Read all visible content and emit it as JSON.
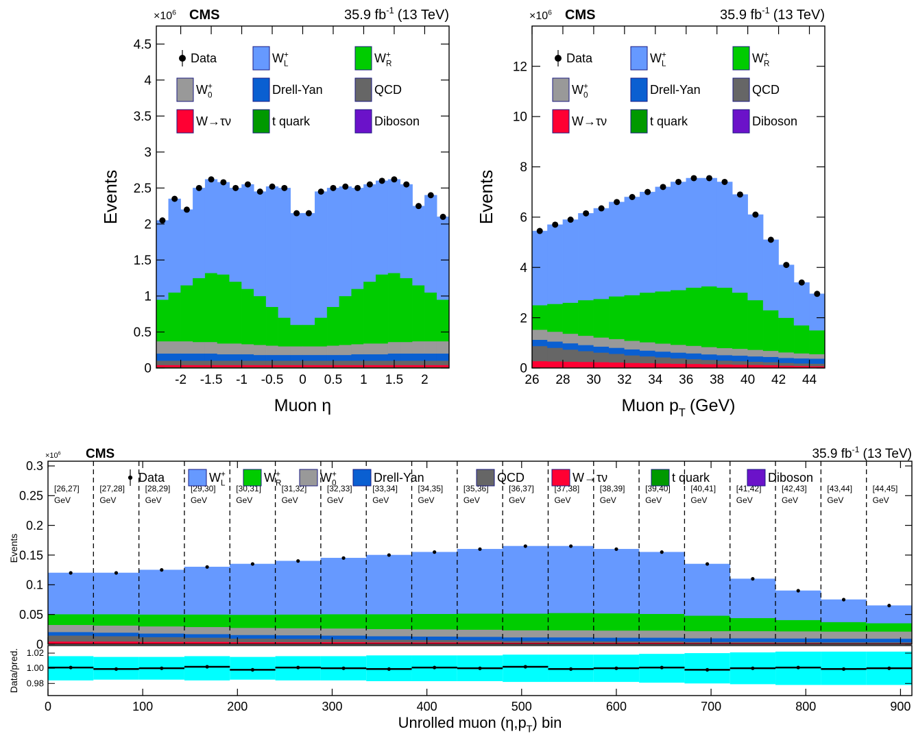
{
  "chart_data": [
    {
      "type": "stacked_histogram",
      "exponent_base": "×10",
      "exponent": "6",
      "experiment": "CMS",
      "lumi": "35.9 fb",
      "lumi_sup": "-1",
      "lumi_energy": "(13 TeV)",
      "ylabel": "Events",
      "xlabel": "Muon η",
      "bins": [
        -2.4,
        -2.2,
        -2,
        -1.8,
        -1.6,
        -1.4,
        -1.2,
        -1,
        -0.8,
        -0.6,
        -0.4,
        -0.2,
        0,
        0.2,
        0.4,
        0.6,
        0.8,
        1,
        1.2,
        1.4,
        1.6,
        1.8,
        2,
        2.2,
        2.4
      ],
      "xlim": [
        -2.4,
        2.4
      ],
      "xticks": [
        -2,
        -1.5,
        -1,
        -0.5,
        0,
        0.5,
        1,
        1.5,
        2
      ],
      "ylim": [
        0,
        4.75
      ],
      "yticks": [
        0,
        0.5,
        1,
        1.5,
        2,
        2.5,
        3,
        3.5,
        4,
        4.5
      ],
      "data": {
        "name": "Data",
        "values": [
          2.05,
          2.35,
          2.2,
          2.5,
          2.62,
          2.58,
          2.5,
          2.55,
          2.45,
          2.52,
          2.5,
          2.15,
          2.15,
          2.45,
          2.5,
          2.52,
          2.5,
          2.55,
          2.6,
          2.62,
          2.55,
          2.25,
          2.4,
          2.1
        ]
      },
      "series": [
        {
          "name": "W",
          "sup": "+",
          "sub": "L",
          "color": "#6699ff",
          "values": [
            1.1,
            1.3,
            1.05,
            1.25,
            1.3,
            1.28,
            1.3,
            1.45,
            1.45,
            1.67,
            1.8,
            1.55,
            1.55,
            1.75,
            1.65,
            1.52,
            1.4,
            1.35,
            1.3,
            1.3,
            1.3,
            1.1,
            1.35,
            1.15
          ]
        },
        {
          "name": "W",
          "sup": "+",
          "sub": "R",
          "color": "#00cc00",
          "values": [
            0.578,
            0.678,
            0.778,
            0.888,
            0.958,
            0.958,
            0.858,
            0.768,
            0.678,
            0.538,
            0.398,
            0.298,
            0.298,
            0.398,
            0.538,
            0.678,
            0.768,
            0.858,
            0.958,
            0.958,
            0.888,
            0.778,
            0.678,
            0.578
          ]
        },
        {
          "name": "W",
          "sup": "+",
          "sub": "0",
          "color": "#999999",
          "values": [
            0.17,
            0.17,
            0.17,
            0.16,
            0.16,
            0.15,
            0.15,
            0.14,
            0.14,
            0.13,
            0.12,
            0.12,
            0.12,
            0.12,
            0.13,
            0.14,
            0.14,
            0.15,
            0.15,
            0.16,
            0.16,
            0.17,
            0.17,
            0.17
          ]
        },
        {
          "name": "Drell-Yan",
          "color": "#0a5fd1",
          "values": [
            0.1,
            0.1,
            0.1,
            0.1,
            0.1,
            0.09,
            0.09,
            0.09,
            0.08,
            0.08,
            0.08,
            0.08,
            0.08,
            0.08,
            0.08,
            0.08,
            0.09,
            0.09,
            0.09,
            0.1,
            0.1,
            0.1,
            0.1,
            0.1
          ]
        },
        {
          "name": "QCD",
          "color": "#666666",
          "values": [
            0.06,
            0.06,
            0.06,
            0.06,
            0.06,
            0.06,
            0.06,
            0.06,
            0.06,
            0.06,
            0.06,
            0.06,
            0.06,
            0.06,
            0.06,
            0.06,
            0.06,
            0.06,
            0.06,
            0.06,
            0.06,
            0.06,
            0.06,
            0.06
          ]
        },
        {
          "name": "W→τν",
          "color": "#ff0033",
          "values": [
            0.03,
            0.03,
            0.03,
            0.03,
            0.03,
            0.03,
            0.03,
            0.03,
            0.03,
            0.03,
            0.03,
            0.03,
            0.03,
            0.03,
            0.03,
            0.03,
            0.03,
            0.03,
            0.03,
            0.03,
            0.03,
            0.03,
            0.03,
            0.03
          ]
        },
        {
          "name": "t quark",
          "color": "#009900",
          "values": [
            0.01,
            0.01,
            0.01,
            0.01,
            0.01,
            0.01,
            0.01,
            0.01,
            0.01,
            0.01,
            0.01,
            0.01,
            0.01,
            0.01,
            0.01,
            0.01,
            0.01,
            0.01,
            0.01,
            0.01,
            0.01,
            0.01,
            0.01,
            0.01
          ]
        },
        {
          "name": "Diboson",
          "color": "#6b12c9",
          "values": [
            0.002,
            0.002,
            0.002,
            0.002,
            0.002,
            0.002,
            0.002,
            0.002,
            0.002,
            0.002,
            0.002,
            0.002,
            0.002,
            0.002,
            0.002,
            0.002,
            0.002,
            0.002,
            0.002,
            0.002,
            0.002,
            0.002,
            0.002,
            0.002
          ]
        }
      ]
    },
    {
      "type": "stacked_histogram",
      "exponent_base": "×10",
      "exponent": "6",
      "experiment": "CMS",
      "lumi": "35.9 fb",
      "lumi_sup": "-1",
      "lumi_energy": "(13 TeV)",
      "ylabel": "Events",
      "xlabel": "Muon p",
      "xlabel_sub": "T",
      "xlabel_tail": "(GeV)",
      "bins": [
        26,
        27,
        28,
        29,
        30,
        31,
        32,
        33,
        34,
        35,
        36,
        37,
        38,
        39,
        40,
        41,
        42,
        43,
        44,
        45
      ],
      "xlim": [
        26,
        45
      ],
      "xticks": [
        26,
        28,
        30,
        32,
        34,
        36,
        38,
        40,
        42,
        44
      ],
      "ylim": [
        0,
        13.6
      ],
      "yticks": [
        0,
        2,
        4,
        6,
        8,
        10,
        12
      ],
      "data": {
        "name": "Data",
        "values": [
          5.45,
          5.7,
          5.9,
          6.15,
          6.35,
          6.6,
          6.8,
          7.0,
          7.2,
          7.4,
          7.55,
          7.55,
          7.4,
          6.9,
          6.1,
          5.1,
          4.1,
          3.4,
          2.95
        ]
      },
      "series": [
        {
          "name": "W",
          "sup": "+",
          "sub": "L",
          "color": "#6699ff",
          "values": [
            2.95,
            3.15,
            3.3,
            3.45,
            3.6,
            3.75,
            3.9,
            4.0,
            4.15,
            4.3,
            4.35,
            4.3,
            4.2,
            3.9,
            3.4,
            2.8,
            2.1,
            1.7,
            1.45
          ]
        },
        {
          "name": "W",
          "sup": "+",
          "sub": "R",
          "color": "#00cc00",
          "values": [
            0.975,
            1.105,
            1.235,
            1.415,
            1.535,
            1.695,
            1.815,
            1.975,
            2.075,
            2.175,
            2.315,
            2.415,
            2.405,
            2.235,
            1.975,
            1.615,
            1.375,
            1.115,
            0.945
          ]
        },
        {
          "name": "W",
          "sup": "+",
          "sub": "0",
          "color": "#999999",
          "values": [
            0.4,
            0.39,
            0.38,
            0.37,
            0.36,
            0.35,
            0.34,
            0.33,
            0.32,
            0.31,
            0.3,
            0.29,
            0.28,
            0.27,
            0.26,
            0.24,
            0.22,
            0.2,
            0.18
          ]
        },
        {
          "name": "Drell-Yan",
          "color": "#0a5fd1",
          "values": [
            0.25,
            0.25,
            0.25,
            0.24,
            0.24,
            0.24,
            0.24,
            0.23,
            0.23,
            0.23,
            0.23,
            0.22,
            0.22,
            0.22,
            0.21,
            0.21,
            0.2,
            0.2,
            0.2
          ]
        },
        {
          "name": "QCD",
          "color": "#666666",
          "values": [
            0.6,
            0.54,
            0.48,
            0.43,
            0.38,
            0.34,
            0.3,
            0.27,
            0.24,
            0.21,
            0.19,
            0.17,
            0.15,
            0.14,
            0.13,
            0.12,
            0.11,
            0.1,
            0.1
          ]
        },
        {
          "name": "W→τν",
          "color": "#ff0033",
          "values": [
            0.25,
            0.24,
            0.23,
            0.22,
            0.21,
            0.2,
            0.18,
            0.17,
            0.16,
            0.15,
            0.14,
            0.13,
            0.12,
            0.11,
            0.1,
            0.09,
            0.07,
            0.06,
            0.05
          ]
        },
        {
          "name": "t quark",
          "color": "#009900",
          "values": [
            0.02,
            0.02,
            0.02,
            0.02,
            0.02,
            0.02,
            0.02,
            0.02,
            0.02,
            0.02,
            0.02,
            0.02,
            0.02,
            0.02,
            0.02,
            0.02,
            0.02,
            0.02,
            0.02
          ]
        },
        {
          "name": "Diboson",
          "color": "#6b12c9",
          "values": [
            0.005,
            0.005,
            0.005,
            0.005,
            0.005,
            0.005,
            0.005,
            0.005,
            0.005,
            0.005,
            0.005,
            0.005,
            0.005,
            0.005,
            0.005,
            0.005,
            0.005,
            0.005,
            0.005
          ]
        }
      ]
    },
    {
      "type": "stacked_histogram",
      "exponent_base": "×10",
      "exponent": "6",
      "experiment": "CMS",
      "lumi": "35.9 fb",
      "lumi_sup": "-1",
      "lumi_energy": "(13 TeV)",
      "ylabel": "Events",
      "xlabel": "Unrolled muon (η,p",
      "xlabel_sub": "T",
      "xlabel_tail": ") bin",
      "bins": [
        0,
        48,
        96,
        144,
        192,
        240,
        288,
        336,
        384,
        432,
        480,
        528,
        576,
        624,
        672,
        720,
        768,
        816,
        864,
        912
      ],
      "bin_labels": [
        "[26,27]",
        "[27,28]",
        "[28,29]",
        "[29,30]",
        "[30,31]",
        "[31,32]",
        "[32,33]",
        "[33,34]",
        "[34,35]",
        "[35,36]",
        "[36,37]",
        "[37,38]",
        "[38,39]",
        "[39,40]",
        "[40,41]",
        "[41,42]",
        "[42,43]",
        "[43,44]",
        "[44,45]"
      ],
      "bin_unit": "GeV",
      "xlim": [
        0,
        912
      ],
      "xticks": [
        0,
        100,
        200,
        300,
        400,
        500,
        600,
        700,
        800,
        900
      ],
      "ylim": [
        0,
        0.308
      ],
      "yticks": [
        0,
        0.05,
        0.1,
        0.15,
        0.2,
        0.25,
        0.3
      ],
      "data": {
        "name": "Data",
        "values": [
          0.12,
          0.12,
          0.125,
          0.13,
          0.135,
          0.14,
          0.145,
          0.15,
          0.155,
          0.16,
          0.165,
          0.165,
          0.16,
          0.155,
          0.135,
          0.11,
          0.09,
          0.075,
          0.065
        ]
      },
      "series": [
        {
          "name": "W",
          "sup": "+",
          "sub": "L",
          "color": "#6699ff",
          "values": [
            0.0694,
            0.0694,
            0.0749,
            0.0799,
            0.0854,
            0.0899,
            0.0944,
            0.0994,
            0.1039,
            0.1084,
            0.1134,
            0.1124,
            0.1079,
            0.1039,
            0.0869,
            0.0659,
            0.0492,
            0.0376,
            0.0296
          ]
        },
        {
          "name": "W",
          "sup": "+",
          "sub": "R",
          "color": "#00cc00",
          "values": [
            0.018,
            0.019,
            0.02,
            0.021,
            0.022,
            0.023,
            0.024,
            0.025,
            0.026,
            0.027,
            0.028,
            0.029,
            0.029,
            0.028,
            0.026,
            0.022,
            0.019,
            0.016,
            0.014
          ]
        },
        {
          "name": "W",
          "sup": "+",
          "sub": "0",
          "color": "#999999",
          "values": [
            0.012,
            0.012,
            0.012,
            0.012,
            0.012,
            0.012,
            0.012,
            0.012,
            0.012,
            0.012,
            0.012,
            0.012,
            0.012,
            0.012,
            0.012,
            0.012,
            0.012,
            0.012,
            0.012
          ]
        },
        {
          "name": "Drell-Yan",
          "color": "#0a5fd1",
          "values": [
            0.006,
            0.006,
            0.006,
            0.006,
            0.006,
            0.006,
            0.006,
            0.006,
            0.006,
            0.006,
            0.006,
            0.006,
            0.006,
            0.006,
            0.006,
            0.006,
            0.006,
            0.006,
            0.006
          ]
        },
        {
          "name": "QCD",
          "color": "#666666",
          "values": [
            0.01,
            0.009,
            0.008,
            0.007,
            0.006,
            0.0055,
            0.005,
            0.0045,
            0.004,
            0.0035,
            0.003,
            0.003,
            0.0025,
            0.0025,
            0.002,
            0.002,
            0.002,
            0.0018,
            0.0018
          ]
        },
        {
          "name": "W→τν",
          "color": "#ff0033",
          "values": [
            0.004,
            0.004,
            0.0035,
            0.0035,
            0.003,
            0.003,
            0.003,
            0.0025,
            0.0025,
            0.0025,
            0.002,
            0.002,
            0.002,
            0.002,
            0.0015,
            0.0015,
            0.0012,
            0.001,
            0.001
          ]
        },
        {
          "name": "t quark",
          "color": "#009900",
          "values": [
            0.0005,
            0.0005,
            0.0005,
            0.0005,
            0.0005,
            0.0005,
            0.0005,
            0.0005,
            0.0005,
            0.0005,
            0.0005,
            0.0005,
            0.0005,
            0.0005,
            0.0005,
            0.0005,
            0.0005,
            0.0005,
            0.0005
          ]
        },
        {
          "name": "Diboson",
          "color": "#6b12c9",
          "values": [
            0.0001,
            0.0001,
            0.0001,
            0.0001,
            0.0001,
            0.0001,
            0.0001,
            0.0001,
            0.0001,
            0.0001,
            0.0001,
            0.0001,
            0.0001,
            0.0001,
            0.0001,
            0.0001,
            0.0001,
            0.0001,
            0.0001
          ]
        }
      ],
      "ratio": {
        "ylabel": "Data/pred.",
        "ylim": [
          0.964,
          1.03
        ],
        "yticks": [
          0.98,
          {
            "value": 1,
            "label": "1.00"
          },
          1.02
        ],
        "values": [
          1.001,
          0.999,
          1.0,
          1.002,
          0.998,
          1.001,
          1.0,
          0.999,
          1.001,
          1.0,
          1.002,
          0.999,
          1.0,
          1.001,
          0.998,
          1.0,
          1.001,
          0.999,
          1.0
        ],
        "errors": [
          0.016,
          0.015,
          0.015,
          0.016,
          0.015,
          0.016,
          0.016,
          0.017,
          0.017,
          0.017,
          0.018,
          0.018,
          0.018,
          0.019,
          0.02,
          0.021,
          0.022,
          0.022,
          0.022
        ],
        "band_color": "#00ffff"
      }
    }
  ]
}
